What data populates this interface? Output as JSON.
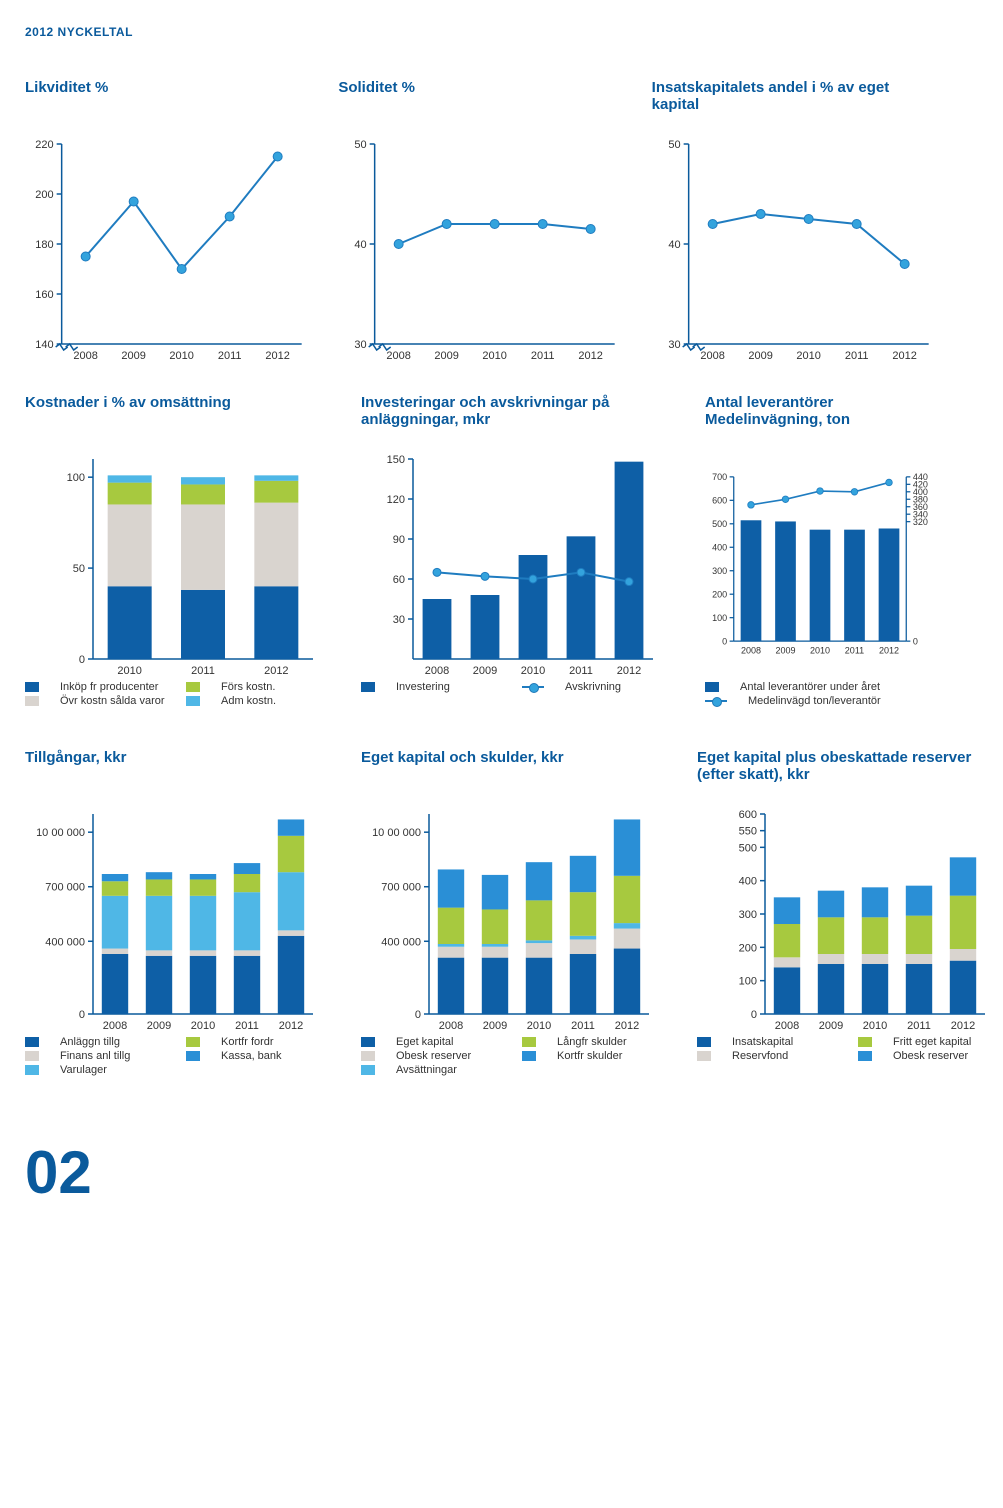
{
  "header": "2012 NYCKELTAL",
  "colors": {
    "blue": "#0e5fa6",
    "lightblue": "#4fb7e6",
    "green": "#a7c93f",
    "grey": "#d9d4cf",
    "line": "#1f7cc0",
    "marker": "#33a3dd",
    "axis": "#0a5a9c",
    "title": "#0a5a9c"
  },
  "charts": {
    "likviditet": {
      "title": "Likviditet %",
      "ymin": 140,
      "ymax": 220,
      "yticks": [
        140,
        160,
        180,
        200,
        220
      ],
      "xlabels": [
        "2008",
        "2009",
        "2010",
        "2011",
        "2012"
      ],
      "values": [
        175,
        197,
        170,
        191,
        215
      ],
      "broken_axis": true
    },
    "soliditet": {
      "title": "Soliditet %",
      "ymin": 30,
      "ymax": 50,
      "yticks": [
        30,
        40,
        50
      ],
      "xlabels": [
        "2008",
        "2009",
        "2010",
        "2011",
        "2012"
      ],
      "values": [
        40,
        42,
        42,
        42,
        41.5
      ],
      "broken_axis": true
    },
    "insatskapital": {
      "title": "Insatskapitalets andel i % av eget kapital",
      "ymin": 30,
      "ymax": 50,
      "yticks": [
        30,
        40,
        50
      ],
      "xlabels": [
        "2008",
        "2009",
        "2010",
        "2011",
        "2012"
      ],
      "values": [
        42,
        43,
        42.5,
        42,
        38
      ],
      "broken_axis": true
    },
    "kostnader": {
      "title": "Kostnader i % av omsättning",
      "ymin": 0,
      "ymax": 110,
      "yticks": [
        0,
        50,
        100
      ],
      "xlabels": [
        "2010",
        "2011",
        "2012"
      ],
      "series_order": [
        "inkop",
        "ovr",
        "fors",
        "adm"
      ],
      "stacks": {
        "2010": {
          "inkop": 40,
          "ovr": 45,
          "fors": 12,
          "adm": 4
        },
        "2011": {
          "inkop": 38,
          "ovr": 47,
          "fors": 11,
          "adm": 4
        },
        "2012": {
          "inkop": 40,
          "ovr": 46,
          "fors": 12,
          "adm": 3
        }
      },
      "series_colors": {
        "inkop": "#0e5fa6",
        "ovr": "#d9d4cf",
        "fors": "#a7c93f",
        "adm": "#4fb7e6"
      },
      "legend": [
        [
          "Inköp fr producenter",
          "#0e5fa6",
          "Förs kostn.",
          "#a7c93f"
        ],
        [
          "Övr kostn sålda varor",
          "#d9d4cf",
          "Adm kostn.",
          "#4fb7e6"
        ]
      ]
    },
    "investeringar": {
      "title": "Investeringar och avskrivningar på anläggningar, mkr",
      "ymin": 0,
      "ymax": 150,
      "yticks": [
        30,
        60,
        90,
        120,
        150
      ],
      "xlabels": [
        "2008",
        "2009",
        "2010",
        "2011",
        "2012"
      ],
      "bars": [
        45,
        48,
        78,
        92,
        148
      ],
      "line": [
        65,
        62,
        60,
        65,
        58
      ],
      "bar_color": "#0e5fa6",
      "legend": [
        [
          "Investering",
          "#0e5fa6",
          "Avskrivning",
          "line"
        ]
      ]
    },
    "leverantorer": {
      "title": "Antal leverantörer Medelinvägning, ton",
      "ymin": 0,
      "ymax": 700,
      "yticks": [
        0,
        100,
        200,
        300,
        400,
        500,
        600,
        700
      ],
      "ymin_r": 0,
      "ymax_r": 440,
      "yticks_r": [
        0,
        320,
        340,
        360,
        380,
        400,
        420,
        440
      ],
      "xlabels": [
        "2008",
        "2009",
        "2010",
        "2011",
        "2012"
      ],
      "bars": [
        515,
        510,
        475,
        475,
        480
      ],
      "line": [
        365,
        380,
        402,
        400,
        425
      ],
      "bar_color": "#0e5fa6",
      "legend": [
        [
          "Antal leverantörer under året",
          "#0e5fa6"
        ],
        [
          "Medelinvägd ton/leverantör",
          "line"
        ]
      ]
    },
    "tillgangar": {
      "title": "Tillgångar, kkr",
      "ymin": 0,
      "ymax": 1100000,
      "yticks": [
        0,
        400000,
        700000,
        1000000
      ],
      "ytick_labels": [
        "0",
        "400 000",
        "700 000",
        "10 00 000"
      ],
      "xlabels": [
        "2008",
        "2009",
        "2010",
        "2011",
        "2012"
      ],
      "series_order": [
        "anlaggn",
        "finans",
        "varulager",
        "kortfr",
        "kassa"
      ],
      "series_colors": {
        "anlaggn": "#0e5fa6",
        "finans": "#d9d4cf",
        "varulager": "#4fb7e6",
        "kortfr": "#a7c93f",
        "kassa": "#2a8fd6"
      },
      "stacks": {
        "2008": {
          "anlaggn": 330000,
          "finans": 30000,
          "varulager": 290000,
          "kortfr": 80000,
          "kassa": 40000
        },
        "2009": {
          "anlaggn": 320000,
          "finans": 30000,
          "varulager": 300000,
          "kortfr": 90000,
          "kassa": 40000
        },
        "2010": {
          "anlaggn": 320000,
          "finans": 30000,
          "varulager": 300000,
          "kortfr": 90000,
          "kassa": 30000
        },
        "2011": {
          "anlaggn": 320000,
          "finans": 30000,
          "varulager": 320000,
          "kortfr": 100000,
          "kassa": 60000
        },
        "2012": {
          "anlaggn": 430000,
          "finans": 30000,
          "varulager": 320000,
          "kortfr": 200000,
          "kassa": 90000
        }
      },
      "legend": [
        [
          "Anläggn tillg",
          "#0e5fa6",
          "Kortfr fordr",
          "#a7c93f"
        ],
        [
          "Finans anl tillg",
          "#d9d4cf",
          "Kassa, bank",
          "#2a8fd6"
        ],
        [
          "Varulager",
          "#4fb7e6"
        ]
      ]
    },
    "egetskulder": {
      "title": "Eget kapital och skulder, kkr",
      "ymin": 0,
      "ymax": 1100000,
      "yticks": [
        0,
        400000,
        700000,
        1000000
      ],
      "ytick_labels": [
        "0",
        "400 000",
        "700 000",
        "10 00 000"
      ],
      "xlabels": [
        "2008",
        "2009",
        "2010",
        "2011",
        "2012"
      ],
      "series_order": [
        "eget",
        "obesk",
        "avs",
        "langfr",
        "kortfr"
      ],
      "series_colors": {
        "eget": "#0e5fa6",
        "obesk": "#d9d4cf",
        "avs": "#4fb7e6",
        "langfr": "#a7c93f",
        "kortfr": "#2a8fd6"
      },
      "stacks": {
        "2008": {
          "eget": 310000,
          "obesk": 60000,
          "avs": 15000,
          "langfr": 200000,
          "kortfr": 210000
        },
        "2009": {
          "eget": 310000,
          "obesk": 60000,
          "avs": 15000,
          "langfr": 190000,
          "kortfr": 190000
        },
        "2010": {
          "eget": 310000,
          "obesk": 80000,
          "avs": 15000,
          "langfr": 220000,
          "kortfr": 210000
        },
        "2011": {
          "eget": 330000,
          "obesk": 80000,
          "avs": 20000,
          "langfr": 240000,
          "kortfr": 200000
        },
        "2012": {
          "eget": 360000,
          "obesk": 110000,
          "avs": 30000,
          "langfr": 260000,
          "kortfr": 310000
        }
      },
      "legend": [
        [
          "Eget kapital",
          "#0e5fa6",
          "Långfr skulder",
          "#a7c93f"
        ],
        [
          "Obesk reserver",
          "#d9d4cf",
          "Kortfr skulder",
          "#2a8fd6"
        ],
        [
          "Avsättningar",
          "#4fb7e6"
        ]
      ]
    },
    "efter_skatt": {
      "title": "Eget kapital plus obeskattade reserver (efter skatt), kkr",
      "ymin": 0,
      "ymax": 600,
      "yticks": [
        0,
        100,
        200,
        300,
        400,
        500,
        550,
        600
      ],
      "xlabels": [
        "2008",
        "2009",
        "2010",
        "2011",
        "2012"
      ],
      "series_order": [
        "insats",
        "reserv",
        "fritt",
        "obesk"
      ],
      "series_colors": {
        "insats": "#0e5fa6",
        "reserv": "#d9d4cf",
        "fritt": "#a7c93f",
        "obesk": "#2a8fd6"
      },
      "stacks": {
        "2008": {
          "insats": 140,
          "reserv": 30,
          "fritt": 100,
          "obesk": 80
        },
        "2009": {
          "insats": 150,
          "reserv": 30,
          "fritt": 110,
          "obesk": 80
        },
        "2010": {
          "insats": 150,
          "reserv": 30,
          "fritt": 110,
          "obesk": 90
        },
        "2011": {
          "insats": 150,
          "reserv": 30,
          "fritt": 115,
          "obesk": 90
        },
        "2012": {
          "insats": 160,
          "reserv": 35,
          "fritt": 160,
          "obesk": 115
        }
      },
      "legend": [
        [
          "Insatskapital",
          "#0e5fa6",
          "Fritt eget kapital",
          "#a7c93f"
        ],
        [
          "Reservfond",
          "#d9d4cf",
          "Obesk reserver",
          "#2a8fd6"
        ]
      ]
    }
  },
  "page_number": "02"
}
